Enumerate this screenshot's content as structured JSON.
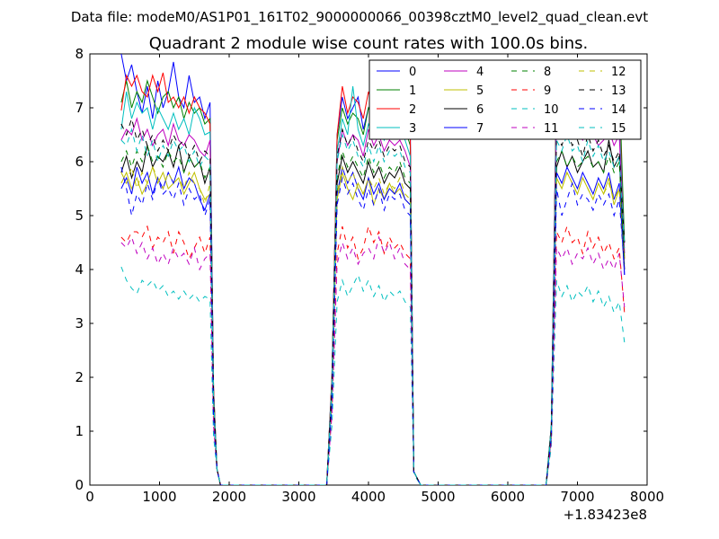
{
  "header": {
    "data_file_label": "Data file: modeM0/AS1P01_161T02_9000000066_00398cztM0_level2_quad_clean.evt"
  },
  "chart_data": {
    "type": "line",
    "title": "Quadrant 2 module wise count rates with 100.0s bins.",
    "xlabel": "",
    "ylabel": "",
    "x_offset_label": "+1.83423e8",
    "xlim": [
      0,
      8000
    ],
    "ylim": [
      0,
      8
    ],
    "xticks": [
      0,
      1000,
      2000,
      3000,
      4000,
      5000,
      6000,
      7000,
      8000
    ],
    "yticks": [
      0,
      1,
      2,
      3,
      4,
      5,
      6,
      7,
      8
    ],
    "legend_position": "top-right",
    "x": [
      450,
      525,
      600,
      675,
      750,
      825,
      900,
      975,
      1050,
      1125,
      1200,
      1275,
      1350,
      1425,
      1500,
      1575,
      1650,
      1725,
      1775,
      1825,
      1875,
      1950,
      2050,
      3400,
      3475,
      3550,
      3625,
      3700,
      3775,
      3850,
      3925,
      4000,
      4075,
      4150,
      4225,
      4300,
      4375,
      4450,
      4525,
      4600,
      4650,
      4750,
      6550,
      6625,
      6700,
      6775,
      6850,
      6925,
      7000,
      7075,
      7150,
      7225,
      7300,
      7375,
      7450,
      7525,
      7600,
      7675
    ],
    "series": [
      {
        "name": "0",
        "color": "#0000ff",
        "dash": "solid",
        "values": [
          8.0,
          7.5,
          7.8,
          7.3,
          6.9,
          7.4,
          6.8,
          7.5,
          7.0,
          7.3,
          7.85,
          7.2,
          7.0,
          7.6,
          7.1,
          7.2,
          6.8,
          7.1,
          1.8,
          0.3,
          0.0,
          0.0,
          0.0,
          0.0,
          2.0,
          6.5,
          7.2,
          6.8,
          7.0,
          7.2,
          6.6,
          7.0,
          6.9,
          7.4,
          6.9,
          7.2,
          7.0,
          7.1,
          6.9,
          6.6,
          0.25,
          0.0,
          0.0,
          1.1,
          7.55,
          7.4,
          7.2,
          7.5,
          7.3,
          7.1,
          7.4,
          7.2,
          7.0,
          6.9,
          7.3,
          7.2,
          7.4,
          3.9
        ]
      },
      {
        "name": "1",
        "color": "#008000",
        "dash": "solid",
        "values": [
          7.1,
          7.5,
          7.0,
          7.3,
          7.1,
          7.5,
          7.2,
          6.9,
          7.2,
          7.3,
          7.0,
          7.2,
          6.8,
          7.1,
          6.9,
          7.0,
          6.7,
          6.8,
          1.8,
          0.3,
          0.0,
          0.0,
          0.0,
          0.0,
          2.0,
          6.4,
          7.0,
          6.7,
          6.9,
          6.8,
          6.5,
          7.0,
          6.8,
          6.9,
          6.7,
          7.0,
          6.8,
          6.9,
          6.6,
          6.3,
          0.25,
          0.0,
          0.0,
          1.1,
          7.5,
          7.5,
          7.3,
          7.5,
          7.3,
          7.2,
          7.2,
          7.0,
          6.9,
          7.2,
          7.1,
          6.8,
          7.5,
          4.5
        ]
      },
      {
        "name": "2",
        "color": "#ff0000",
        "dash": "solid",
        "values": [
          6.95,
          7.6,
          7.4,
          7.6,
          7.3,
          7.2,
          7.6,
          7.3,
          7.65,
          7.1,
          7.2,
          7.0,
          7.2,
          6.9,
          7.2,
          7.0,
          6.9,
          6.7,
          1.8,
          0.3,
          0.0,
          0.0,
          0.0,
          0.0,
          2.0,
          6.5,
          7.4,
          6.9,
          7.2,
          7.1,
          6.8,
          7.3,
          7.0,
          7.1,
          6.9,
          7.3,
          7.0,
          7.2,
          6.9,
          6.5,
          0.25,
          0.0,
          0.0,
          1.1,
          7.4,
          7.3,
          7.0,
          7.4,
          7.1,
          6.9,
          7.3,
          7.1,
          6.8,
          7.0,
          7.2,
          6.9,
          7.1,
          4.2
        ]
      },
      {
        "name": "3",
        "color": "#00bfbf",
        "dash": "solid",
        "values": [
          6.6,
          7.3,
          6.8,
          7.1,
          6.9,
          7.0,
          6.6,
          7.0,
          6.8,
          6.6,
          6.9,
          6.6,
          6.8,
          6.5,
          7.0,
          6.8,
          6.5,
          6.55,
          1.7,
          0.3,
          0.0,
          0.0,
          0.0,
          0.0,
          1.9,
          6.2,
          6.8,
          6.5,
          7.4,
          6.6,
          6.3,
          6.7,
          6.5,
          6.8,
          6.4,
          6.6,
          6.5,
          6.7,
          6.4,
          6.1,
          0.25,
          0.0,
          0.0,
          1.1,
          7.2,
          7.0,
          6.8,
          7.1,
          6.9,
          6.7,
          6.9,
          6.8,
          6.6,
          6.7,
          6.9,
          6.6,
          6.8,
          4.3
        ]
      },
      {
        "name": "4",
        "color": "#bf00bf",
        "dash": "solid",
        "values": [
          6.4,
          6.6,
          6.5,
          6.8,
          6.4,
          6.6,
          6.3,
          6.5,
          6.6,
          6.3,
          6.7,
          6.4,
          6.3,
          6.5,
          6.4,
          6.2,
          6.1,
          6.4,
          1.6,
          0.3,
          0.0,
          0.0,
          0.0,
          0.0,
          1.8,
          6.0,
          6.6,
          6.3,
          6.5,
          6.4,
          6.1,
          6.6,
          6.3,
          6.5,
          6.2,
          6.4,
          6.3,
          6.4,
          6.2,
          5.9,
          0.25,
          0.0,
          0.0,
          1.0,
          6.9,
          6.7,
          6.5,
          6.8,
          6.6,
          6.4,
          6.6,
          6.5,
          6.3,
          6.4,
          6.6,
          6.3,
          6.5,
          4.3
        ]
      },
      {
        "name": "5",
        "color": "#bfbf00",
        "dash": "solid",
        "values": [
          5.6,
          5.8,
          5.5,
          5.7,
          5.4,
          5.6,
          5.9,
          5.6,
          5.8,
          5.5,
          5.6,
          5.7,
          5.4,
          5.6,
          5.8,
          5.5,
          5.3,
          5.4,
          1.4,
          0.3,
          0.0,
          0.0,
          0.0,
          0.0,
          1.6,
          5.3,
          5.8,
          5.5,
          5.3,
          5.6,
          5.4,
          5.7,
          5.2,
          5.5,
          5.3,
          5.6,
          5.4,
          5.5,
          5.3,
          5.2,
          0.25,
          0.0,
          0.0,
          0.9,
          5.7,
          5.5,
          5.8,
          5.6,
          5.4,
          5.7,
          5.5,
          5.3,
          5.6,
          5.4,
          5.7,
          5.2,
          5.5,
          4.2
        ]
      },
      {
        "name": "6",
        "color": "#000000",
        "dash": "solid",
        "values": [
          5.8,
          6.1,
          5.7,
          6.0,
          5.8,
          6.3,
          5.9,
          6.1,
          6.0,
          6.2,
          5.9,
          6.3,
          5.8,
          6.1,
          5.9,
          6.0,
          5.6,
          5.9,
          1.5,
          0.3,
          0.0,
          0.0,
          0.0,
          0.0,
          1.7,
          5.6,
          6.1,
          5.8,
          6.0,
          5.8,
          5.6,
          6.0,
          5.7,
          5.9,
          5.6,
          5.8,
          5.7,
          5.9,
          5.6,
          5.5,
          0.25,
          0.0,
          0.0,
          1.0,
          5.9,
          6.2,
          5.9,
          6.1,
          5.8,
          6.0,
          6.2,
          5.9,
          6.0,
          5.8,
          6.4,
          5.9,
          6.1,
          4.0
        ]
      },
      {
        "name": "7",
        "color": "#0000ff",
        "dash": "solid",
        "values": [
          5.5,
          5.7,
          5.4,
          5.9,
          5.6,
          5.8,
          5.4,
          5.7,
          5.5,
          5.8,
          5.6,
          5.9,
          5.5,
          5.7,
          5.6,
          5.3,
          5.1,
          5.4,
          1.4,
          0.3,
          0.0,
          0.0,
          0.0,
          0.0,
          1.6,
          5.4,
          5.9,
          5.6,
          5.8,
          5.5,
          5.3,
          5.7,
          5.4,
          5.6,
          5.3,
          5.5,
          5.4,
          5.6,
          5.3,
          5.2,
          0.25,
          0.0,
          0.0,
          0.9,
          5.8,
          5.6,
          5.9,
          5.7,
          5.5,
          5.8,
          5.6,
          5.4,
          5.7,
          5.5,
          5.8,
          5.3,
          5.6,
          3.9
        ]
      },
      {
        "name": "8",
        "color": "#008000",
        "dash": "dashed",
        "values": [
          6.0,
          6.2,
          5.9,
          6.2,
          6.0,
          6.3,
          6.0,
          6.1,
          5.9,
          6.2,
          6.0,
          6.1,
          5.8,
          6.1,
          5.9,
          6.0,
          5.7,
          5.9,
          1.5,
          0.3,
          0.0,
          0.0,
          0.0,
          0.0,
          1.7,
          5.7,
          6.2,
          5.9,
          6.1,
          5.9,
          5.7,
          6.1,
          5.8,
          6.0,
          5.7,
          5.9,
          5.8,
          6.0,
          5.7,
          5.6,
          0.25,
          0.0,
          0.0,
          1.0,
          6.0,
          6.2,
          5.9,
          6.1,
          5.9,
          6.0,
          6.1,
          5.9,
          6.0,
          5.8,
          6.1,
          5.8,
          6.0,
          4.1
        ]
      },
      {
        "name": "9",
        "color": "#ff0000",
        "dash": "dashed",
        "values": [
          4.6,
          4.5,
          4.7,
          4.7,
          4.6,
          4.8,
          4.4,
          4.6,
          4.5,
          4.7,
          4.3,
          4.7,
          4.5,
          4.2,
          4.4,
          4.6,
          4.3,
          4.6,
          1.2,
          0.3,
          0.0,
          0.0,
          0.0,
          0.0,
          1.4,
          4.3,
          4.8,
          4.4,
          4.6,
          4.2,
          4.4,
          4.8,
          4.5,
          4.7,
          4.3,
          4.6,
          4.4,
          4.5,
          4.3,
          4.2,
          0.25,
          0.0,
          0.0,
          0.8,
          4.7,
          4.5,
          4.8,
          4.5,
          4.6,
          4.3,
          4.7,
          4.4,
          4.6,
          4.3,
          4.5,
          4.2,
          4.4,
          3.2
        ]
      },
      {
        "name": "10",
        "color": "#00bfbf",
        "dash": "dashed",
        "values": [
          4.05,
          3.8,
          3.65,
          3.55,
          3.8,
          3.7,
          3.8,
          3.6,
          3.7,
          3.5,
          3.6,
          3.45,
          3.6,
          3.45,
          3.55,
          3.4,
          3.5,
          3.45,
          0.9,
          0.3,
          0.0,
          0.0,
          0.0,
          0.0,
          1.1,
          3.4,
          3.8,
          3.5,
          3.7,
          3.9,
          3.6,
          3.8,
          3.5,
          3.7,
          3.4,
          3.6,
          3.5,
          3.6,
          3.4,
          3.3,
          0.2,
          0.0,
          0.0,
          0.7,
          3.8,
          3.5,
          3.7,
          3.4,
          3.6,
          3.5,
          3.7,
          3.4,
          3.6,
          3.3,
          3.5,
          3.2,
          3.4,
          2.65
        ]
      },
      {
        "name": "11",
        "color": "#bf00bf",
        "dash": "dashed",
        "values": [
          4.5,
          4.4,
          4.6,
          4.3,
          4.5,
          4.2,
          4.4,
          4.1,
          4.3,
          4.1,
          4.4,
          4.2,
          4.3,
          4.1,
          4.4,
          4.0,
          4.2,
          4.3,
          1.1,
          0.3,
          0.0,
          0.0,
          0.0,
          0.0,
          1.3,
          4.1,
          4.5,
          4.2,
          4.4,
          4.1,
          4.3,
          4.4,
          4.2,
          4.6,
          4.3,
          4.5,
          4.2,
          4.4,
          4.1,
          4.0,
          0.25,
          0.0,
          0.0,
          0.8,
          4.4,
          4.2,
          4.4,
          4.1,
          4.3,
          4.2,
          4.4,
          4.1,
          4.3,
          4.0,
          4.2,
          4.0,
          4.3,
          3.3
        ]
      },
      {
        "name": "12",
        "color": "#bfbf00",
        "dash": "dashed",
        "values": [
          5.8,
          5.6,
          5.9,
          5.5,
          5.8,
          5.6,
          5.9,
          5.7,
          5.5,
          5.8,
          5.6,
          5.7,
          5.5,
          5.8,
          5.6,
          5.5,
          5.2,
          5.6,
          1.4,
          0.3,
          0.0,
          0.0,
          0.0,
          0.0,
          1.6,
          5.4,
          5.9,
          5.6,
          5.8,
          5.5,
          5.4,
          5.7,
          5.5,
          5.7,
          5.4,
          5.6,
          5.5,
          5.7,
          5.4,
          5.3,
          0.25,
          0.0,
          0.0,
          0.9,
          5.7,
          5.5,
          5.8,
          5.6,
          5.4,
          5.7,
          5.5,
          5.3,
          5.6,
          5.4,
          5.6,
          5.3,
          5.5,
          4.0
        ]
      },
      {
        "name": "13",
        "color": "#000000",
        "dash": "dashed",
        "values": [
          6.7,
          6.5,
          6.8,
          6.4,
          6.6,
          6.3,
          6.5,
          6.2,
          6.4,
          6.2,
          6.5,
          6.3,
          6.4,
          6.1,
          6.3,
          6.0,
          6.2,
          6.1,
          1.6,
          0.3,
          0.0,
          0.0,
          0.0,
          0.0,
          1.8,
          6.1,
          6.6,
          6.3,
          6.5,
          6.2,
          6.0,
          6.4,
          6.2,
          6.4,
          6.1,
          6.3,
          6.2,
          6.3,
          6.0,
          5.9,
          0.25,
          0.0,
          0.0,
          1.0,
          6.5,
          6.3,
          6.6,
          6.3,
          6.4,
          6.1,
          6.5,
          6.2,
          6.4,
          6.1,
          6.3,
          6.0,
          6.2,
          4.5
        ]
      },
      {
        "name": "14",
        "color": "#0000ff",
        "dash": "dashed",
        "values": [
          5.9,
          5.5,
          5.0,
          5.4,
          5.2,
          5.6,
          5.3,
          5.7,
          5.4,
          5.5,
          5.3,
          5.6,
          5.2,
          5.5,
          5.3,
          5.4,
          5.0,
          5.3,
          1.3,
          0.3,
          0.0,
          0.0,
          0.0,
          0.0,
          1.5,
          5.2,
          5.7,
          5.4,
          5.6,
          5.3,
          5.1,
          5.5,
          5.2,
          5.5,
          5.1,
          5.4,
          5.3,
          5.4,
          5.1,
          5.0,
          0.25,
          0.0,
          0.0,
          0.9,
          5.5,
          5.0,
          5.3,
          5.6,
          5.2,
          5.4,
          5.3,
          5.1,
          5.4,
          5.2,
          5.4,
          5.0,
          5.3,
          4.0
        ]
      },
      {
        "name": "15",
        "color": "#00bfbf",
        "dash": "dashed",
        "values": [
          6.4,
          6.3,
          6.6,
          6.2,
          6.5,
          6.1,
          6.4,
          6.0,
          6.3,
          6.1,
          6.4,
          6.2,
          6.3,
          6.0,
          6.2,
          5.9,
          6.1,
          6.0,
          1.6,
          0.3,
          0.0,
          0.0,
          0.0,
          0.0,
          1.8,
          6.0,
          6.5,
          6.2,
          6.4,
          6.1,
          5.9,
          6.3,
          6.0,
          6.3,
          6.0,
          6.2,
          6.1,
          6.2,
          5.9,
          5.8,
          0.25,
          0.0,
          0.0,
          1.0,
          6.4,
          6.2,
          6.5,
          6.2,
          6.3,
          6.0,
          6.4,
          6.1,
          6.3,
          6.0,
          6.2,
          5.9,
          6.1,
          4.4
        ]
      }
    ]
  }
}
